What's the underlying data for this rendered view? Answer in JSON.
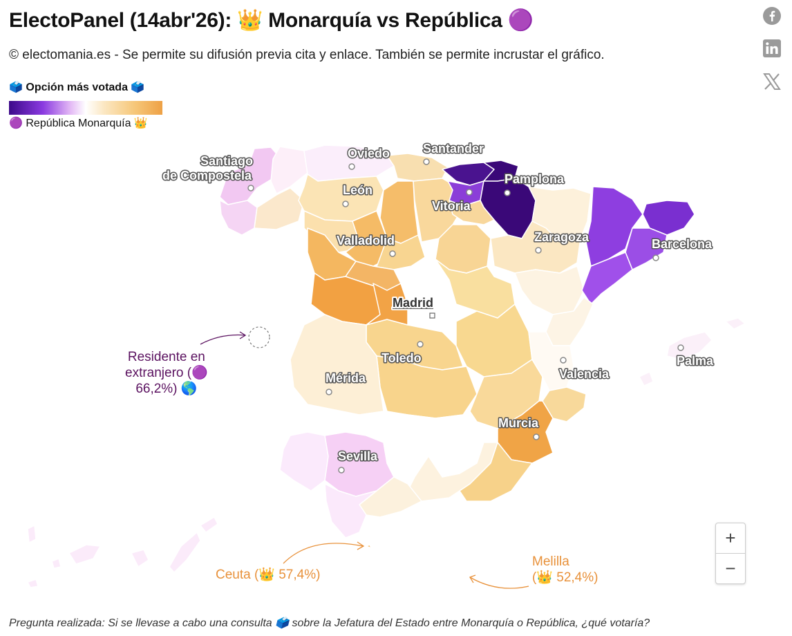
{
  "header": {
    "title": "ElectoPanel (14abr'26): 👑 Monarquía vs República 🟣",
    "subtitle": "© electomania.es - Se permite su difusión previa cita y enlace. También se permite incrustar el gráfico."
  },
  "share": [
    "facebook-icon",
    "linkedin-icon",
    "x-icon"
  ],
  "legend": {
    "title": "🗳️ Opción más votada 🗳️",
    "left_label": "🟣 República",
    "right_label": "Monarquía 👑",
    "colors": [
      "#3d0a8a",
      "#8a3ae0",
      "#e3b8f5",
      "#ffffff",
      "#fbe7c2",
      "#f6c779",
      "#eea145"
    ]
  },
  "map": {
    "cities": [
      "Santiago",
      "de Compostela",
      "Oviedo",
      "Santander",
      "León",
      "Pamplona",
      "Vitoria",
      "Valladolid",
      "Zaragoza",
      "Barcelona",
      "Madrid",
      "Toledo",
      "Mérida",
      "Valencia",
      "Palma",
      "Murcia",
      "Sevilla"
    ]
  },
  "annotations": {
    "exterior": [
      "Residente en",
      "extranjero (🟣",
      "66,2%)  🌎"
    ],
    "ceuta": "Ceuta (👑 57,4%)",
    "melilla": [
      "Melilla",
      "(👑 52,4%)"
    ]
  },
  "controls": {
    "zoom_in": "+",
    "zoom_out": "−"
  },
  "footer": "Pregunta realizada: Si se llevase a cabo una consulta 🗳️ sobre la Jefatura del Estado entre Monarquía o República, ¿qué votaría?"
}
